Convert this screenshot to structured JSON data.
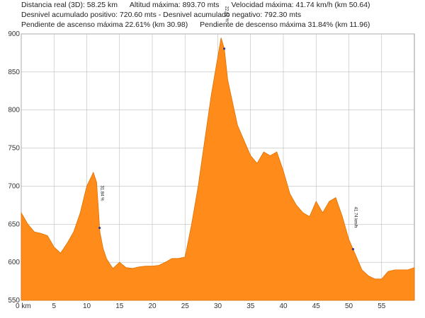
{
  "header": {
    "line1": [
      "Distancia real (3D): 58.25 km",
      "Altitud máxima: 893.70 mts",
      "Velocidad máxima: 41.74 km/h (km 50.64)"
    ],
    "line2": [
      "Desnivel acumulado positivo: 720.60 mts - Desnivel acumulado negativo: 792.30 mts"
    ],
    "line3": [
      "Pendiente de ascenso máxima 22.61% (km 30.98)",
      "Pendiente de descenso máxima 31.84% (km 11.96)"
    ]
  },
  "colors": {
    "fill": "#ff8c1a",
    "grid": "#bdbdbd",
    "marker": "#3a3a8a"
  },
  "chart_data": {
    "type": "area",
    "title": "",
    "xlabel": "",
    "ylabel": "",
    "xlim": [
      0,
      60
    ],
    "ylim": [
      550,
      900
    ],
    "grid": true,
    "x_tick_labels": [
      "0 km",
      "5",
      "10",
      "15",
      "20",
      "25",
      "30",
      "35",
      "40",
      "45",
      "50",
      "55"
    ],
    "x_ticks": [
      0,
      5,
      10,
      15,
      20,
      25,
      30,
      35,
      40,
      45,
      50,
      55
    ],
    "y_ticks": [
      550,
      600,
      650,
      700,
      750,
      800,
      850,
      900
    ],
    "x_start_label": "",
    "series": [
      {
        "name": "",
        "x": [
          0,
          1,
          2,
          3,
          4,
          5,
          6,
          7,
          8,
          9,
          10,
          11,
          11.5,
          12,
          12.5,
          13,
          13.5,
          14,
          15,
          16,
          17,
          18,
          19,
          20,
          21,
          22,
          23,
          24,
          25,
          26,
          27,
          28,
          29,
          30,
          30.5,
          31,
          31.5,
          32,
          33,
          34,
          35,
          36,
          37,
          38,
          39,
          40,
          41,
          42,
          43,
          44,
          45,
          46,
          47,
          48,
          49,
          50,
          51,
          52,
          53,
          54,
          55,
          56,
          57,
          58,
          59,
          60
        ],
        "y": [
          665,
          650,
          640,
          638,
          635,
          620,
          612,
          625,
          640,
          665,
          700,
          718,
          705,
          640,
          618,
          605,
          598,
          592,
          600,
          593,
          592,
          594,
          595,
          595,
          596,
          600,
          605,
          605,
          607,
          650,
          700,
          760,
          820,
          870,
          895,
          880,
          840,
          820,
          780,
          760,
          740,
          730,
          745,
          740,
          745,
          720,
          690,
          675,
          665,
          660,
          680,
          665,
          680,
          685,
          660,
          630,
          610,
          590,
          582,
          578,
          578,
          588,
          590,
          590,
          590,
          593
        ]
      }
    ],
    "annotations": [
      {
        "label": "31.84 %",
        "x": 11.96
      },
      {
        "label": "22.61 %",
        "x": 30.98
      },
      {
        "label": "41.74 km/h",
        "x": 50.64
      }
    ]
  }
}
